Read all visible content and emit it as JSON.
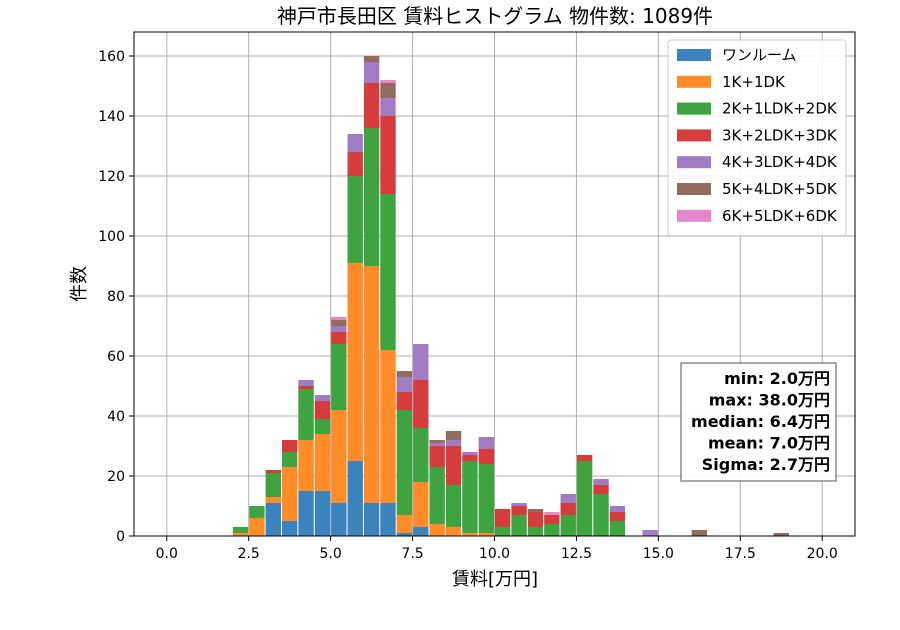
{
  "chart_data": {
    "type": "bar",
    "stacked": true,
    "title": "神戸市長田区 賃料ヒストグラム  物件数: 1089件",
    "xlabel": "賃料[万円]",
    "ylabel": "件数",
    "xlim": [
      -1,
      21
    ],
    "ylim": [
      0,
      168
    ],
    "xticks": [
      0.0,
      2.5,
      5.0,
      7.5,
      10.0,
      12.5,
      15.0,
      17.5,
      20.0
    ],
    "xtick_labels": [
      "0.0",
      "2.5",
      "5.0",
      "7.5",
      "10.0",
      "12.5",
      "15.0",
      "17.5",
      "20.0"
    ],
    "yticks": [
      0,
      20,
      40,
      60,
      80,
      100,
      120,
      140,
      160
    ],
    "ytick_labels": [
      "0",
      "20",
      "40",
      "60",
      "80",
      "100",
      "120",
      "140",
      "160"
    ],
    "grid": true,
    "legend_position": "top-right",
    "bin_width": 0.5,
    "x": [
      2.0,
      2.5,
      3.0,
      3.5,
      4.0,
      4.5,
      5.0,
      5.5,
      6.0,
      6.5,
      7.0,
      7.5,
      8.0,
      8.5,
      9.0,
      9.5,
      10.0,
      10.5,
      11.0,
      11.5,
      12.0,
      12.5,
      13.0,
      13.5,
      14.5,
      16.0,
      18.5
    ],
    "series": [
      {
        "name": "ワンルーム",
        "color": "#3b83bd",
        "values": [
          0,
          0,
          11,
          5,
          15,
          15,
          11,
          25,
          11,
          11,
          1,
          3,
          0,
          0,
          0,
          0,
          0,
          0,
          0,
          0,
          0,
          0,
          0,
          0,
          0,
          0,
          0
        ]
      },
      {
        "name": "1K+1DK",
        "color": "#ff8c28",
        "values": [
          1,
          6,
          2,
          18,
          17,
          19,
          31,
          66,
          79,
          51,
          6,
          15,
          4,
          3,
          1,
          1,
          0,
          0,
          0,
          0,
          0,
          0,
          0,
          0,
          0,
          0,
          0
        ]
      },
      {
        "name": "2K+1LDK+2DK",
        "color": "#3fa33f",
        "values": [
          2,
          4,
          8,
          5,
          17,
          5,
          22,
          29,
          46,
          52,
          35,
          18,
          19,
          14,
          24,
          23,
          3,
          7,
          3,
          4,
          7,
          25,
          14,
          5,
          0,
          0,
          0
        ]
      },
      {
        "name": "3K+2LDK+3DK",
        "color": "#d63c3c",
        "values": [
          0,
          0,
          1,
          4,
          1,
          6,
          4,
          8,
          15,
          26,
          6,
          16,
          7,
          13,
          2,
          5,
          6,
          3,
          5,
          3,
          4,
          2,
          3,
          3,
          0,
          0,
          0
        ]
      },
      {
        "name": "4K+3LDK+4DK",
        "color": "#a07cc5",
        "values": [
          0,
          0,
          0,
          0,
          2,
          2,
          2,
          6,
          7,
          6,
          5,
          12,
          1,
          2,
          1,
          4,
          0,
          1,
          0,
          0,
          3,
          0,
          2,
          2,
          2,
          0,
          0
        ]
      },
      {
        "name": "5K+4LDK+5DK",
        "color": "#946b5f",
        "values": [
          0,
          0,
          0,
          0,
          0,
          0,
          2,
          0,
          2,
          5,
          2,
          0,
          1,
          3,
          0,
          0,
          0,
          0,
          1,
          0,
          0,
          0,
          0,
          0,
          0,
          2,
          1
        ]
      },
      {
        "name": "6K+5LDK+6DK",
        "color": "#e587c8",
        "values": [
          0,
          0,
          0,
          0,
          0,
          0,
          1,
          0,
          0,
          1,
          0,
          0,
          0,
          0,
          0,
          0,
          0,
          0,
          0,
          1,
          0,
          0,
          0,
          0,
          0,
          0,
          0
        ]
      }
    ],
    "stats": {
      "lines": [
        "min: 2.0万円",
        "max: 38.0万円",
        "median: 6.4万円",
        "mean: 7.0万円",
        "Sigma: 2.7万円"
      ]
    }
  }
}
